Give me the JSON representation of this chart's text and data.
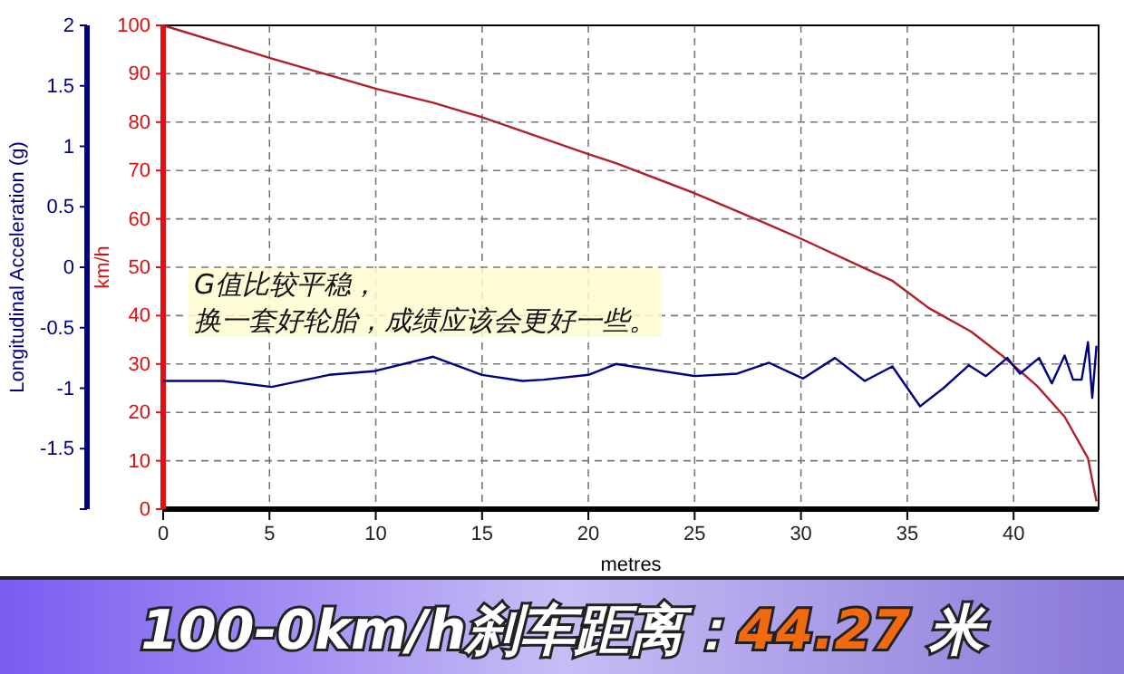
{
  "chart_data": {
    "type": "line",
    "title": "100-0km/h刹车距离：44.27 米",
    "xlabel": "metres",
    "ylabel": "Longitudinal Acceleration (g)",
    "y2label": "km/h",
    "annotations": [
      "G值比较平稳，",
      "换一套好轮胎，成绩应该会更好一些。"
    ],
    "grid": true,
    "xlim": [
      0,
      44
    ],
    "xticks": [
      0,
      5,
      10,
      15,
      20,
      25,
      30,
      35,
      40
    ],
    "ylim": [
      -2,
      2
    ],
    "yticks": [
      2,
      1.5,
      1,
      0.5,
      0,
      -0.5,
      -1,
      -1.5,
      {
        "value": -2,
        "label": null
      }
    ],
    "y2lim": [
      0,
      100
    ],
    "y2ticks": [
      0,
      10,
      20,
      30,
      40,
      50,
      60,
      70,
      80,
      90,
      100
    ],
    "series": [
      {
        "color": "#b0202a",
        "axis": "y2",
        "x": [
          0,
          5,
          10,
          12.7,
          15,
          20,
          21.3,
          25,
          28,
          30,
          33,
          34.3,
          36,
          38,
          39.5,
          41.1,
          42.4,
          43.5,
          43.9
        ],
        "values": [
          100,
          93.3,
          86.9,
          84,
          81,
          73.4,
          71.5,
          65.3,
          59.7,
          55.9,
          49.8,
          47.2,
          41.6,
          36.7,
          31.6,
          25.5,
          19.1,
          10.5,
          1.6
        ]
      },
      {
        "color": "#000080",
        "axis": "y",
        "x": [
          0,
          2.8,
          5.1,
          7.8,
          9.9,
          12.7,
          15,
          16.9,
          17.9,
          20,
          21.3,
          25,
          27,
          28.5,
          30.1,
          31.6,
          33,
          34.3,
          35.6,
          36.7,
          37.9,
          38.7,
          39.7,
          40.3,
          41.2,
          41.8,
          42.4,
          42.8,
          43.2,
          43.5,
          43.7,
          43.9
        ],
        "values": [
          -0.94,
          -0.94,
          -0.99,
          -0.89,
          -0.86,
          -0.74,
          -0.89,
          -0.94,
          -0.93,
          -0.89,
          -0.8,
          -0.9,
          -0.88,
          -0.79,
          -0.92,
          -0.75,
          -0.94,
          -0.82,
          -1.15,
          -1,
          -0.81,
          -0.9,
          -0.75,
          -0.88,
          -0.75,
          -0.96,
          -0.73,
          -0.93,
          -0.93,
          -0.62,
          -1.08,
          -0.65
        ]
      }
    ]
  }
}
